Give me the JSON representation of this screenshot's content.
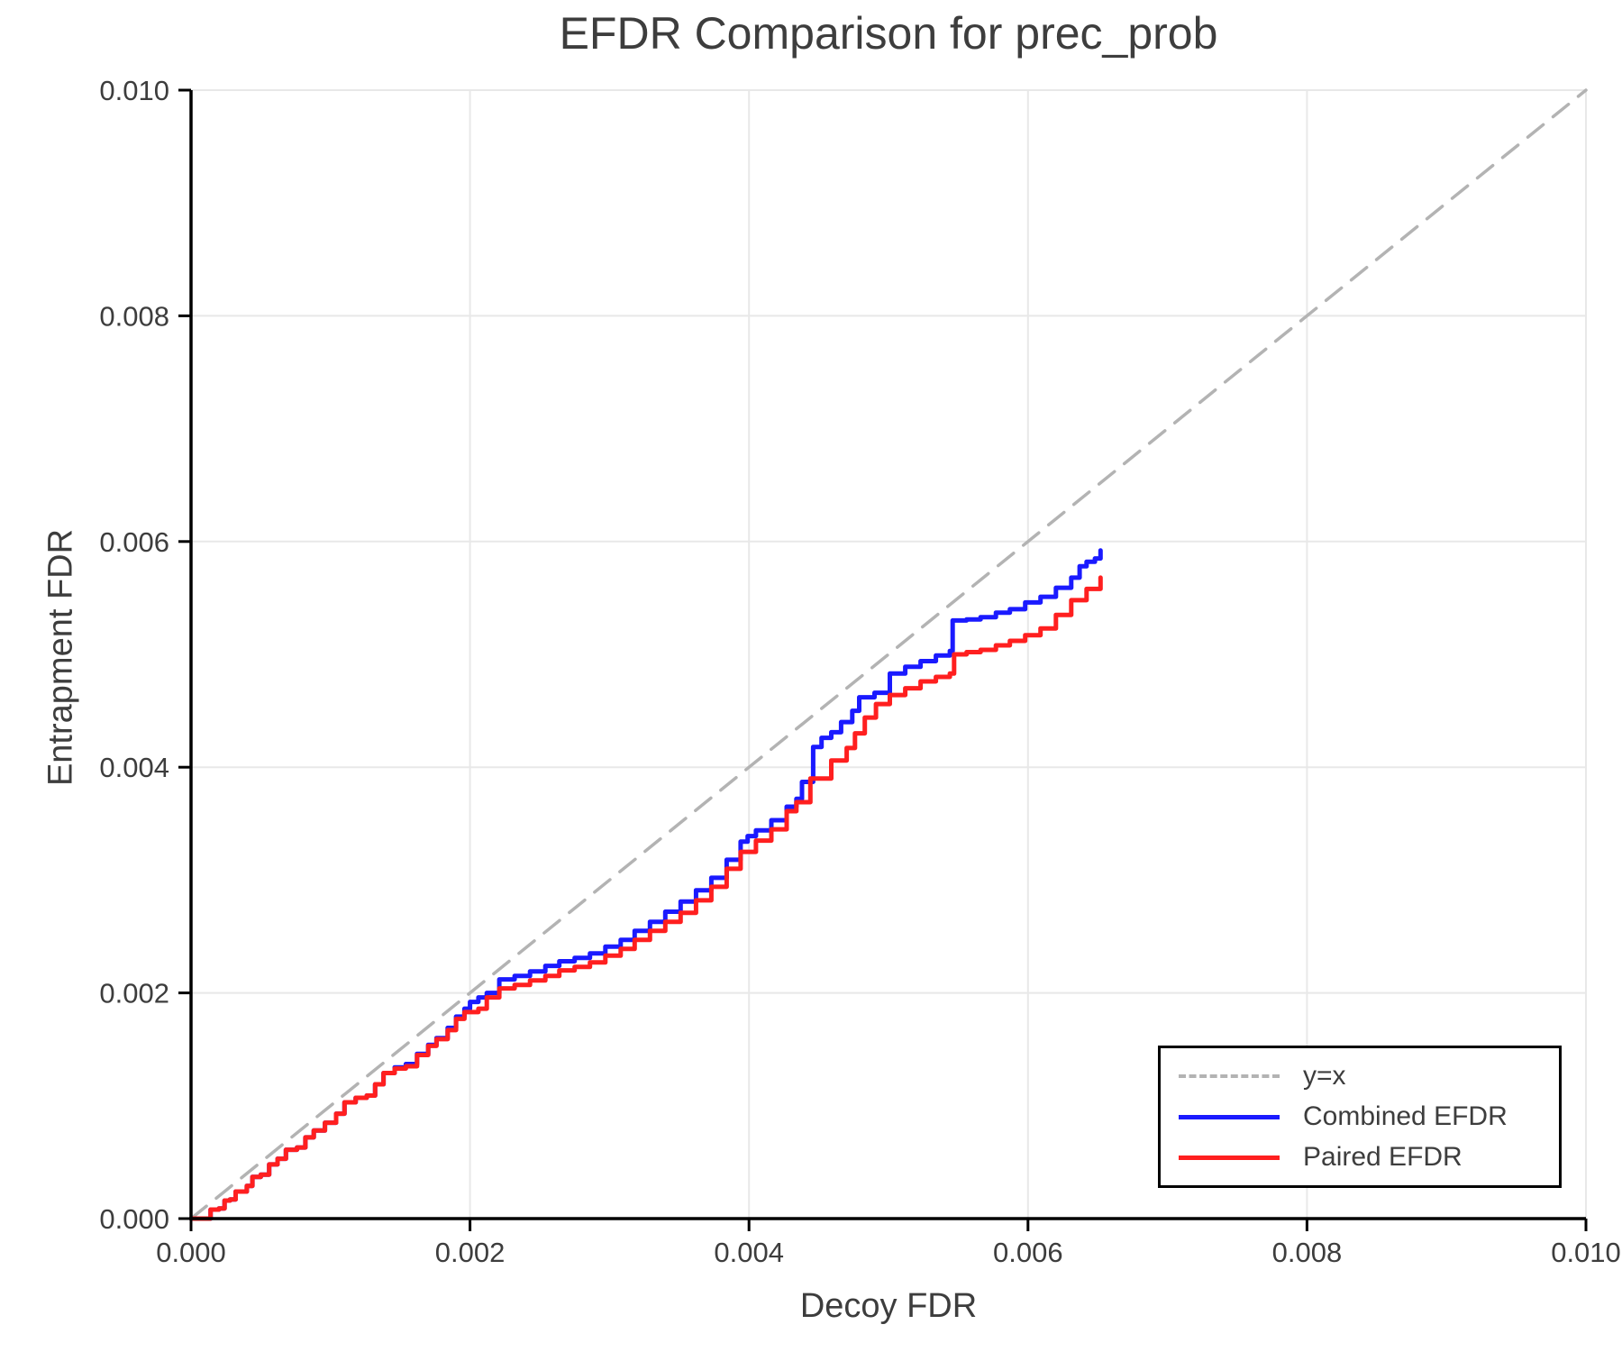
{
  "title": "EFDR Comparison for prec_prob",
  "legend": {
    "entries": [
      {
        "label": "y=x",
        "swatch": "dashed-gray-line"
      },
      {
        "label": "Combined EFDR",
        "swatch": "blue-line"
      },
      {
        "label": "Paired EFDR",
        "swatch": "red-line"
      }
    ]
  },
  "colors": {
    "combined": "#1a1aff",
    "paired": "#ff1f1f",
    "diagonal": "#b3b3b3",
    "grid": "#e8e8e8",
    "spine": "#000000",
    "text": "#3d3d3d"
  },
  "chart_data": {
    "type": "line",
    "title": "EFDR Comparison for prec_prob",
    "xlabel": "Decoy FDR",
    "ylabel": "Entrapment FDR",
    "xlim": [
      0,
      0.01
    ],
    "ylim": [
      0,
      0.01
    ],
    "x_tick_labels": [
      "0.000",
      "0.002",
      "0.004",
      "0.006",
      "0.008",
      "0.010"
    ],
    "y_tick_labels": [
      "0.000",
      "0.002",
      "0.004",
      "0.006",
      "0.008",
      "0.010"
    ],
    "x_tick_values": [
      0,
      0.002,
      0.004,
      0.006,
      0.008,
      0.01
    ],
    "y_tick_values": [
      0,
      0.002,
      0.004,
      0.006,
      0.008,
      0.01
    ],
    "grid": true,
    "legend_position": "lower right",
    "series": [
      {
        "name": "y=x",
        "type": "reference-diagonal",
        "style": "dashed",
        "color": "#b3b3b3",
        "step": false,
        "points": [
          [
            0,
            0
          ],
          [
            0.01,
            0.01
          ]
        ]
      },
      {
        "name": "Combined EFDR",
        "type": "step-curve",
        "style": "solid",
        "color": "#1a1aff",
        "step": true,
        "points": [
          [
            0,
            0
          ],
          [
            0.00012,
            0
          ],
          [
            0.00014,
            8e-05
          ],
          [
            0.0002,
            9e-05
          ],
          [
            0.00024,
            0.00016
          ],
          [
            0.00028,
            0.00017
          ],
          [
            0.00032,
            0.00024
          ],
          [
            0.0004,
            0.00029
          ],
          [
            0.00044,
            0.00037
          ],
          [
            0.0005,
            0.00039
          ],
          [
            0.00056,
            0.00048
          ],
          [
            0.00062,
            0.00053
          ],
          [
            0.00068,
            0.00061
          ],
          [
            0.00076,
            0.00063
          ],
          [
            0.00082,
            0.00072
          ],
          [
            0.00088,
            0.00078
          ],
          [
            0.00096,
            0.00085
          ],
          [
            0.00104,
            0.00093
          ],
          [
            0.0011,
            0.00103
          ],
          [
            0.00118,
            0.00107
          ],
          [
            0.00126,
            0.00109
          ],
          [
            0.00132,
            0.00119
          ],
          [
            0.00138,
            0.00129
          ],
          [
            0.00146,
            0.00134
          ],
          [
            0.00154,
            0.00137
          ],
          [
            0.00162,
            0.00146
          ],
          [
            0.0017,
            0.00154
          ],
          [
            0.00176,
            0.0016
          ],
          [
            0.00184,
            0.00169
          ],
          [
            0.0019,
            0.00179
          ],
          [
            0.00196,
            0.00186
          ],
          [
            0.002,
            0.00192
          ],
          [
            0.00206,
            0.00196
          ],
          [
            0.00212,
            0.002
          ],
          [
            0.00221,
            0.00212
          ],
          [
            0.00232,
            0.00215
          ],
          [
            0.00243,
            0.00219
          ],
          [
            0.00254,
            0.00224
          ],
          [
            0.00264,
            0.00228
          ],
          [
            0.00275,
            0.00231
          ],
          [
            0.00286,
            0.00235
          ],
          [
            0.00297,
            0.00241
          ],
          [
            0.00308,
            0.00247
          ],
          [
            0.00318,
            0.00255
          ],
          [
            0.00329,
            0.00263
          ],
          [
            0.0034,
            0.00272
          ],
          [
            0.00351,
            0.00281
          ],
          [
            0.00362,
            0.00291
          ],
          [
            0.00373,
            0.00302
          ],
          [
            0.00384,
            0.00318
          ],
          [
            0.00394,
            0.00334
          ],
          [
            0.00399,
            0.00339
          ],
          [
            0.00405,
            0.00344
          ],
          [
            0.00416,
            0.00353
          ],
          [
            0.00427,
            0.00365
          ],
          [
            0.00434,
            0.00372
          ],
          [
            0.00438,
            0.00387
          ],
          [
            0.00446,
            0.00418
          ],
          [
            0.00452,
            0.00426
          ],
          [
            0.00459,
            0.00431
          ],
          [
            0.00466,
            0.0044
          ],
          [
            0.00474,
            0.0045
          ],
          [
            0.00479,
            0.00462
          ],
          [
            0.0049,
            0.00466
          ],
          [
            0.00501,
            0.00483
          ],
          [
            0.00512,
            0.00489
          ],
          [
            0.00523,
            0.00494
          ],
          [
            0.00534,
            0.00499
          ],
          [
            0.00544,
            0.00503
          ],
          [
            0.00546,
            0.0053
          ],
          [
            0.00556,
            0.00531
          ],
          [
            0.00566,
            0.00533
          ],
          [
            0.00577,
            0.00537
          ],
          [
            0.00587,
            0.0054
          ],
          [
            0.00598,
            0.00546
          ],
          [
            0.00609,
            0.00551
          ],
          [
            0.0062,
            0.00559
          ],
          [
            0.00631,
            0.00568
          ],
          [
            0.00637,
            0.00578
          ],
          [
            0.00642,
            0.00582
          ],
          [
            0.00648,
            0.00585
          ],
          [
            0.00652,
            0.00592
          ]
        ]
      },
      {
        "name": "Paired EFDR",
        "type": "step-curve",
        "style": "solid",
        "color": "#ff1f1f",
        "step": true,
        "points": [
          [
            0,
            0
          ],
          [
            0.00012,
            0
          ],
          [
            0.00014,
            8e-05
          ],
          [
            0.0002,
            9e-05
          ],
          [
            0.00024,
            0.00016
          ],
          [
            0.00028,
            0.00017
          ],
          [
            0.00032,
            0.00024
          ],
          [
            0.0004,
            0.00029
          ],
          [
            0.00044,
            0.00037
          ],
          [
            0.0005,
            0.00039
          ],
          [
            0.00056,
            0.00048
          ],
          [
            0.00062,
            0.00053
          ],
          [
            0.00068,
            0.00061
          ],
          [
            0.00076,
            0.00063
          ],
          [
            0.00082,
            0.00072
          ],
          [
            0.00088,
            0.00078
          ],
          [
            0.00096,
            0.00085
          ],
          [
            0.00104,
            0.00093
          ],
          [
            0.0011,
            0.00103
          ],
          [
            0.00118,
            0.00107
          ],
          [
            0.00126,
            0.00109
          ],
          [
            0.00132,
            0.00119
          ],
          [
            0.00138,
            0.00129
          ],
          [
            0.00146,
            0.00133
          ],
          [
            0.00154,
            0.00135
          ],
          [
            0.00162,
            0.00145
          ],
          [
            0.0017,
            0.00153
          ],
          [
            0.00176,
            0.00159
          ],
          [
            0.00184,
            0.00167
          ],
          [
            0.0019,
            0.00177
          ],
          [
            0.00196,
            0.00183
          ],
          [
            0.00206,
            0.00186
          ],
          [
            0.00212,
            0.00196
          ],
          [
            0.00221,
            0.00204
          ],
          [
            0.00232,
            0.00207
          ],
          [
            0.00243,
            0.00211
          ],
          [
            0.00254,
            0.00215
          ],
          [
            0.00264,
            0.0022
          ],
          [
            0.00275,
            0.00223
          ],
          [
            0.00286,
            0.00227
          ],
          [
            0.00297,
            0.00233
          ],
          [
            0.00308,
            0.00239
          ],
          [
            0.00318,
            0.00247
          ],
          [
            0.00329,
            0.00255
          ],
          [
            0.0034,
            0.00263
          ],
          [
            0.00351,
            0.00271
          ],
          [
            0.00362,
            0.00282
          ],
          [
            0.00373,
            0.00294
          ],
          [
            0.00384,
            0.0031
          ],
          [
            0.00394,
            0.00325
          ],
          [
            0.00405,
            0.00335
          ],
          [
            0.00416,
            0.00345
          ],
          [
            0.00427,
            0.00361
          ],
          [
            0.00434,
            0.00369
          ],
          [
            0.00444,
            0.0039
          ],
          [
            0.00459,
            0.00406
          ],
          [
            0.0047,
            0.00417
          ],
          [
            0.00476,
            0.0043
          ],
          [
            0.00483,
            0.00444
          ],
          [
            0.00491,
            0.00456
          ],
          [
            0.00501,
            0.00464
          ],
          [
            0.00512,
            0.0047
          ],
          [
            0.00523,
            0.00476
          ],
          [
            0.00534,
            0.0048
          ],
          [
            0.00544,
            0.00483
          ],
          [
            0.00547,
            0.005
          ],
          [
            0.00556,
            0.00502
          ],
          [
            0.00566,
            0.00504
          ],
          [
            0.00577,
            0.00508
          ],
          [
            0.00587,
            0.00512
          ],
          [
            0.00598,
            0.00517
          ],
          [
            0.00609,
            0.00523
          ],
          [
            0.0062,
            0.00535
          ],
          [
            0.00631,
            0.00548
          ],
          [
            0.00642,
            0.00558
          ],
          [
            0.00652,
            0.00568
          ]
        ]
      }
    ]
  }
}
